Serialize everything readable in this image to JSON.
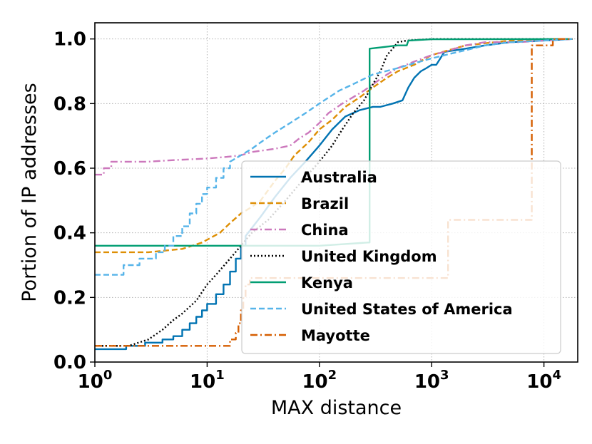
{
  "chart_data": {
    "type": "line",
    "subtype": "ecdf-step",
    "title": "",
    "xlabel": "MAX distance",
    "ylabel": "Portion of IP addresses",
    "xscale": "log",
    "xlim": [
      1,
      20000
    ],
    "ylim": [
      0.0,
      1.05
    ],
    "grid": true,
    "legend_position": "lower-right",
    "x_ticks": [
      {
        "value": 1,
        "base": "10",
        "exp": "0"
      },
      {
        "value": 10,
        "base": "10",
        "exp": "1"
      },
      {
        "value": 100,
        "base": "10",
        "exp": "2"
      },
      {
        "value": 1000,
        "base": "10",
        "exp": "3"
      },
      {
        "value": 10000,
        "base": "10",
        "exp": "4"
      }
    ],
    "y_ticks": [
      {
        "value": 0.0,
        "label": "0.0"
      },
      {
        "value": 0.2,
        "label": "0.2"
      },
      {
        "value": 0.4,
        "label": "0.4"
      },
      {
        "value": 0.6,
        "label": "0.6"
      },
      {
        "value": 0.8,
        "label": "0.8"
      },
      {
        "value": 1.0,
        "label": "1.0"
      }
    ],
    "series": [
      {
        "name": "Australia",
        "color": "#0173b2",
        "dash": "solid",
        "points": [
          [
            1,
            0.04
          ],
          [
            1.9,
            0.04
          ],
          [
            1.9,
            0.05
          ],
          [
            2.8,
            0.05
          ],
          [
            2.8,
            0.06
          ],
          [
            4,
            0.06
          ],
          [
            4,
            0.07
          ],
          [
            5,
            0.07
          ],
          [
            5,
            0.08
          ],
          [
            6,
            0.08
          ],
          [
            6,
            0.1
          ],
          [
            7,
            0.1
          ],
          [
            7,
            0.12
          ],
          [
            8,
            0.12
          ],
          [
            8,
            0.14
          ],
          [
            9,
            0.14
          ],
          [
            9,
            0.16
          ],
          [
            10,
            0.16
          ],
          [
            10,
            0.18
          ],
          [
            12,
            0.18
          ],
          [
            12,
            0.21
          ],
          [
            14,
            0.21
          ],
          [
            14,
            0.24
          ],
          [
            16,
            0.24
          ],
          [
            16,
            0.28
          ],
          [
            18,
            0.28
          ],
          [
            18,
            0.32
          ],
          [
            20,
            0.32
          ],
          [
            20,
            0.36
          ],
          [
            22,
            0.36
          ],
          [
            22,
            0.39
          ],
          [
            30,
            0.45
          ],
          [
            40,
            0.51
          ],
          [
            55,
            0.57
          ],
          [
            75,
            0.62
          ],
          [
            100,
            0.67
          ],
          [
            130,
            0.72
          ],
          [
            170,
            0.76
          ],
          [
            230,
            0.78
          ],
          [
            300,
            0.79
          ],
          [
            350,
            0.79
          ],
          [
            450,
            0.8
          ],
          [
            550,
            0.81
          ],
          [
            620,
            0.85
          ],
          [
            700,
            0.88
          ],
          [
            800,
            0.9
          ],
          [
            900,
            0.91
          ],
          [
            1000,
            0.92
          ],
          [
            1100,
            0.92
          ],
          [
            1300,
            0.96
          ],
          [
            2000,
            0.97
          ],
          [
            3000,
            0.98
          ],
          [
            5000,
            0.99
          ],
          [
            10000,
            0.995
          ],
          [
            18000,
            1.0
          ]
        ]
      },
      {
        "name": "Brazil",
        "color": "#de8f05",
        "dash": "dashed",
        "points": [
          [
            1,
            0.34
          ],
          [
            3,
            0.34
          ],
          [
            6,
            0.35
          ],
          [
            9,
            0.37
          ],
          [
            13,
            0.4
          ],
          [
            16,
            0.43
          ],
          [
            20,
            0.46
          ],
          [
            25,
            0.48
          ],
          [
            30,
            0.5
          ],
          [
            40,
            0.56
          ],
          [
            50,
            0.6
          ],
          [
            60,
            0.64
          ],
          [
            80,
            0.68
          ],
          [
            100,
            0.72
          ],
          [
            130,
            0.75
          ],
          [
            170,
            0.79
          ],
          [
            230,
            0.82
          ],
          [
            300,
            0.85
          ],
          [
            400,
            0.88
          ],
          [
            500,
            0.9
          ],
          [
            700,
            0.92
          ],
          [
            1000,
            0.95
          ],
          [
            2000,
            0.98
          ],
          [
            5000,
            0.995
          ],
          [
            18000,
            1.0
          ]
        ]
      },
      {
        "name": "China",
        "color": "#cc78bc",
        "dash": "dashdot",
        "points": [
          [
            1,
            0.58
          ],
          [
            1.2,
            0.58
          ],
          [
            1.2,
            0.6
          ],
          [
            1.4,
            0.6
          ],
          [
            1.4,
            0.62
          ],
          [
            3,
            0.62
          ],
          [
            5,
            0.625
          ],
          [
            10,
            0.63
          ],
          [
            15,
            0.635
          ],
          [
            20,
            0.64
          ],
          [
            25,
            0.65
          ],
          [
            40,
            0.66
          ],
          [
            55,
            0.67
          ],
          [
            65,
            0.69
          ],
          [
            80,
            0.71
          ],
          [
            100,
            0.74
          ],
          [
            120,
            0.77
          ],
          [
            160,
            0.8
          ],
          [
            200,
            0.82
          ],
          [
            250,
            0.84
          ],
          [
            300,
            0.86
          ],
          [
            400,
            0.89
          ],
          [
            500,
            0.91
          ],
          [
            700,
            0.93
          ],
          [
            1000,
            0.95
          ],
          [
            1300,
            0.96
          ],
          [
            2000,
            0.98
          ],
          [
            3000,
            0.99
          ],
          [
            6000,
            0.99
          ],
          [
            10000,
            0.995
          ],
          [
            18000,
            1.0
          ]
        ]
      },
      {
        "name": "United Kingdom",
        "color": "#000000",
        "dash": "dotted",
        "points": [
          [
            1,
            0.05
          ],
          [
            2,
            0.05
          ],
          [
            3,
            0.07
          ],
          [
            4,
            0.1
          ],
          [
            5,
            0.13
          ],
          [
            6,
            0.15
          ],
          [
            8,
            0.19
          ],
          [
            10,
            0.24
          ],
          [
            12,
            0.27
          ],
          [
            16,
            0.32
          ],
          [
            20,
            0.36
          ],
          [
            25,
            0.4
          ],
          [
            35,
            0.44
          ],
          [
            50,
            0.5
          ],
          [
            70,
            0.56
          ],
          [
            100,
            0.62
          ],
          [
            130,
            0.67
          ],
          [
            160,
            0.72
          ],
          [
            200,
            0.77
          ],
          [
            250,
            0.81
          ],
          [
            300,
            0.86
          ],
          [
            350,
            0.9
          ],
          [
            400,
            0.95
          ],
          [
            450,
            0.97
          ],
          [
            500,
            0.99
          ],
          [
            600,
            0.995
          ],
          [
            1000,
            1.0
          ],
          [
            18000,
            1.0
          ]
        ]
      },
      {
        "name": "Kenya",
        "color": "#029e73",
        "dash": "solid",
        "points": [
          [
            1,
            0.36
          ],
          [
            100,
            0.36
          ],
          [
            270,
            0.37
          ],
          [
            280,
            0.37
          ],
          [
            280,
            0.97
          ],
          [
            500,
            0.98
          ],
          [
            600,
            0.98
          ],
          [
            620,
            0.995
          ],
          [
            1000,
            0.999
          ],
          [
            18000,
            1.0
          ]
        ]
      },
      {
        "name": "United States of America",
        "color": "#56b4e9",
        "dash": "dashed",
        "points": [
          [
            1,
            0.27
          ],
          [
            1.8,
            0.27
          ],
          [
            1.8,
            0.3
          ],
          [
            2.5,
            0.3
          ],
          [
            2.5,
            0.32
          ],
          [
            3.5,
            0.32
          ],
          [
            3.5,
            0.34
          ],
          [
            4.2,
            0.34
          ],
          [
            4.2,
            0.36
          ],
          [
            5,
            0.36
          ],
          [
            5,
            0.39
          ],
          [
            6,
            0.39
          ],
          [
            6,
            0.42
          ],
          [
            7,
            0.42
          ],
          [
            7,
            0.46
          ],
          [
            8,
            0.46
          ],
          [
            8,
            0.49
          ],
          [
            9,
            0.49
          ],
          [
            9,
            0.52
          ],
          [
            10,
            0.52
          ],
          [
            10,
            0.54
          ],
          [
            12,
            0.54
          ],
          [
            12,
            0.57
          ],
          [
            14,
            0.57
          ],
          [
            14,
            0.6
          ],
          [
            16,
            0.6
          ],
          [
            16,
            0.62
          ],
          [
            20,
            0.64
          ],
          [
            25,
            0.66
          ],
          [
            30,
            0.68
          ],
          [
            40,
            0.71
          ],
          [
            55,
            0.74
          ],
          [
            75,
            0.77
          ],
          [
            100,
            0.8
          ],
          [
            150,
            0.84
          ],
          [
            200,
            0.86
          ],
          [
            300,
            0.89
          ],
          [
            500,
            0.91
          ],
          [
            700,
            0.925
          ],
          [
            1000,
            0.94
          ],
          [
            1500,
            0.955
          ],
          [
            2000,
            0.965
          ],
          [
            3000,
            0.98
          ],
          [
            5000,
            0.99
          ],
          [
            10000,
            0.995
          ],
          [
            18000,
            1.0
          ]
        ]
      },
      {
        "name": "Mayotte",
        "color": "#d55e00",
        "dash": "dashdash",
        "points": [
          [
            1,
            0.05
          ],
          [
            16,
            0.05
          ],
          [
            16,
            0.07
          ],
          [
            18,
            0.07
          ],
          [
            18,
            0.09
          ],
          [
            19,
            0.09
          ],
          [
            19,
            0.12
          ],
          [
            20,
            0.12
          ],
          [
            20,
            0.16
          ],
          [
            21,
            0.16
          ],
          [
            21,
            0.2
          ],
          [
            22,
            0.2
          ],
          [
            22,
            0.24
          ],
          [
            24,
            0.24
          ],
          [
            24,
            0.26
          ],
          [
            1400,
            0.26
          ],
          [
            1400,
            0.44
          ],
          [
            7800,
            0.44
          ],
          [
            7800,
            0.98
          ],
          [
            12000,
            0.98
          ],
          [
            12000,
            1.0
          ],
          [
            18000,
            1.0
          ]
        ]
      }
    ]
  }
}
